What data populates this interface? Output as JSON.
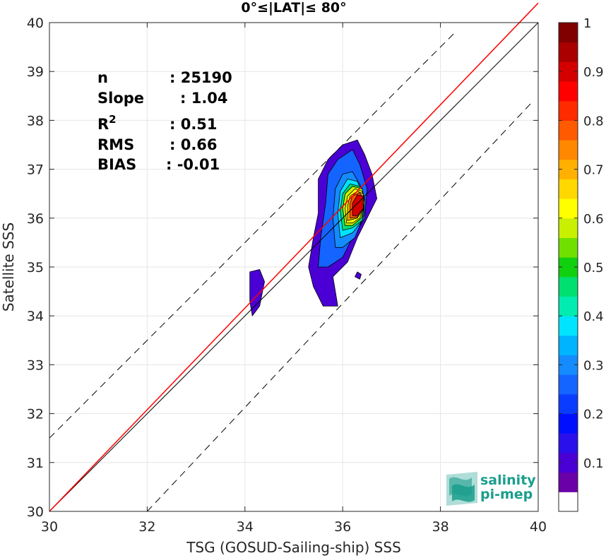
{
  "chart_data": {
    "type": "contour",
    "title": "0°≤|LAT|≤ 80°",
    "xlabel": "TSG (GOSUD-Sailing-ship) SSS",
    "ylabel": "Satellite SSS",
    "xlim": [
      30,
      40
    ],
    "ylim": [
      30,
      40
    ],
    "xticks": [
      30,
      32,
      34,
      36,
      38,
      40
    ],
    "yticks": [
      30,
      31,
      32,
      33,
      34,
      35,
      36,
      37,
      38,
      39,
      40
    ],
    "grid": true,
    "stats": [
      {
        "label": "n",
        "value": ": 25190"
      },
      {
        "label": "Slope",
        "value": ": 1.04"
      },
      {
        "label": "R",
        "sup": "2",
        "value": ": 0.51"
      },
      {
        "label": "RMS",
        "value": ": 0.66"
      },
      {
        "label": "BIAS",
        "value": ": -0.01"
      }
    ],
    "lines": [
      {
        "name": "one-to-one",
        "color": "#000000",
        "style": "solid",
        "points": [
          [
            30,
            30
          ],
          [
            40,
            40
          ]
        ]
      },
      {
        "name": "regression",
        "color": "#ff0000",
        "style": "solid",
        "points": [
          [
            30,
            30.0
          ],
          [
            40,
            40.4
          ]
        ]
      },
      {
        "name": "upper-bound",
        "color": "#000000",
        "style": "dashed",
        "points": [
          [
            30,
            31.5
          ],
          [
            38.3,
            39.8
          ]
        ]
      },
      {
        "name": "lower-bound",
        "color": "#000000",
        "style": "dashed",
        "points": [
          [
            32.0,
            30.0
          ],
          [
            39.9,
            38.4
          ]
        ]
      }
    ],
    "contours": [
      {
        "level": 0.05,
        "points": [
          [
            35.6,
            34.2
          ],
          [
            35.4,
            34.6
          ],
          [
            35.3,
            35.0
          ],
          [
            35.4,
            35.6
          ],
          [
            35.5,
            36.1
          ],
          [
            35.5,
            36.8
          ],
          [
            35.7,
            37.2
          ],
          [
            36.0,
            37.5
          ],
          [
            36.3,
            37.6
          ],
          [
            36.45,
            37.3
          ],
          [
            36.6,
            36.9
          ],
          [
            36.7,
            36.4
          ],
          [
            36.5,
            36.0
          ],
          [
            36.3,
            35.6
          ],
          [
            36.1,
            35.1
          ],
          [
            35.8,
            34.8
          ],
          [
            35.9,
            34.2
          ]
        ]
      },
      {
        "level": 0.05,
        "points": [
          [
            34.1,
            34.6
          ],
          [
            34.1,
            34.9
          ],
          [
            34.3,
            34.95
          ],
          [
            34.4,
            34.7
          ],
          [
            34.3,
            34.2
          ],
          [
            34.15,
            34.0
          ],
          [
            34.1,
            34.3
          ]
        ]
      },
      {
        "level": 0.05,
        "points": [
          [
            36.25,
            34.8
          ],
          [
            36.3,
            34.9
          ],
          [
            36.38,
            34.85
          ],
          [
            36.35,
            34.75
          ]
        ]
      },
      {
        "level": 0.1,
        "points": [
          [
            35.5,
            35.0
          ],
          [
            35.55,
            35.6
          ],
          [
            35.65,
            36.3
          ],
          [
            35.7,
            36.9
          ],
          [
            35.9,
            37.2
          ],
          [
            36.2,
            37.4
          ],
          [
            36.35,
            37.1
          ],
          [
            36.5,
            36.6
          ],
          [
            36.45,
            36.0
          ],
          [
            36.2,
            35.6
          ],
          [
            36.0,
            35.2
          ],
          [
            35.7,
            35.0
          ]
        ]
      },
      {
        "level": 0.2,
        "points": [
          [
            35.85,
            35.4
          ],
          [
            35.8,
            36.0
          ],
          [
            35.85,
            36.6
          ],
          [
            36.0,
            36.9
          ],
          [
            36.2,
            36.95
          ],
          [
            36.4,
            36.6
          ],
          [
            36.45,
            36.1
          ],
          [
            36.25,
            35.6
          ],
          [
            36.0,
            35.4
          ]
        ]
      },
      {
        "level": 0.3,
        "points": [
          [
            35.95,
            35.6
          ],
          [
            35.9,
            36.1
          ],
          [
            35.95,
            36.55
          ],
          [
            36.1,
            36.8
          ],
          [
            36.3,
            36.75
          ],
          [
            36.45,
            36.4
          ],
          [
            36.4,
            35.95
          ],
          [
            36.2,
            35.7
          ]
        ]
      },
      {
        "level": 0.4,
        "points": [
          [
            36.0,
            35.75
          ],
          [
            35.95,
            36.15
          ],
          [
            36.0,
            36.5
          ],
          [
            36.15,
            36.7
          ],
          [
            36.35,
            36.65
          ],
          [
            36.45,
            36.35
          ],
          [
            36.4,
            35.95
          ],
          [
            36.2,
            35.8
          ]
        ]
      },
      {
        "level": 0.5,
        "points": [
          [
            36.05,
            35.85
          ],
          [
            36.0,
            36.2
          ],
          [
            36.05,
            36.5
          ],
          [
            36.2,
            36.65
          ],
          [
            36.4,
            36.6
          ],
          [
            36.45,
            36.3
          ],
          [
            36.38,
            36.0
          ],
          [
            36.2,
            35.85
          ]
        ]
      },
      {
        "level": 0.6,
        "points": [
          [
            36.08,
            35.9
          ],
          [
            36.05,
            36.2
          ],
          [
            36.1,
            36.45
          ],
          [
            36.25,
            36.6
          ],
          [
            36.4,
            36.55
          ],
          [
            36.43,
            36.25
          ],
          [
            36.35,
            36.0
          ],
          [
            36.2,
            35.9
          ]
        ]
      },
      {
        "level": 0.7,
        "points": [
          [
            36.1,
            35.95
          ],
          [
            36.1,
            36.25
          ],
          [
            36.15,
            36.45
          ],
          [
            36.3,
            36.55
          ],
          [
            36.42,
            36.5
          ],
          [
            36.42,
            36.2
          ],
          [
            36.3,
            36.0
          ]
        ]
      },
      {
        "level": 0.8,
        "points": [
          [
            36.15,
            36.0
          ],
          [
            36.15,
            36.3
          ],
          [
            36.2,
            36.45
          ],
          [
            36.35,
            36.52
          ],
          [
            36.42,
            36.4
          ],
          [
            36.4,
            36.15
          ],
          [
            36.3,
            36.02
          ]
        ]
      },
      {
        "level": 0.9,
        "points": [
          [
            36.2,
            36.05
          ],
          [
            36.2,
            36.3
          ],
          [
            36.3,
            36.48
          ],
          [
            36.42,
            36.45
          ],
          [
            36.42,
            36.2
          ],
          [
            36.3,
            36.05
          ]
        ]
      }
    ],
    "colorbar": {
      "range": [
        0,
        1
      ],
      "ticks": [
        0.1,
        0.2,
        0.3,
        0.4,
        0.5,
        0.6,
        0.7,
        0.8,
        0.9,
        1
      ],
      "tick_labels": [
        "0.1",
        "0.2",
        "0.3",
        "0.4",
        "0.5",
        "0.6",
        "0.7",
        "0.8",
        "0.9",
        "1"
      ],
      "colors": [
        "#ffffff",
        "#6a00a8",
        "#4a00d4",
        "#2a10ea",
        "#0010ff",
        "#0a3cff",
        "#1464ff",
        "#148cff",
        "#00b4ff",
        "#00e4ff",
        "#00ecb0",
        "#00e070",
        "#10d010",
        "#70e000",
        "#c8f000",
        "#ffff00",
        "#ffd800",
        "#ffb000",
        "#ff8800",
        "#ff5a00",
        "#ff2a00",
        "#ff0000",
        "#d40000",
        "#aa0000",
        "#800000"
      ]
    },
    "contour_colors": {
      "0.05": "#4a00d4",
      "0.1": "#1464ff",
      "0.2": "#148cff",
      "0.3": "#00e4ff",
      "0.4": "#00e070",
      "0.5": "#c8f000",
      "0.6": "#ffff00",
      "0.7": "#ffb000",
      "0.8": "#ff5a00",
      "0.9": "#d40000"
    }
  },
  "logo": {
    "line1": "salinity",
    "line2": "pi-mep"
  }
}
